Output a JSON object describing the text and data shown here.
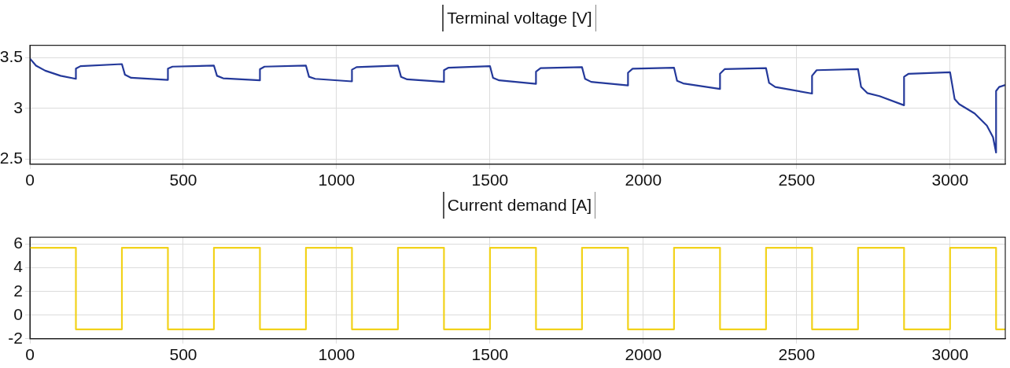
{
  "chart_data": [
    {
      "type": "line",
      "title": "Terminal voltage [V]",
      "marker": "none",
      "grid": true,
      "xlim": [
        0,
        3180
      ],
      "xticks": [
        0,
        500,
        1000,
        1500,
        2000,
        2500,
        3000
      ],
      "ylim": [
        2.45,
        3.62
      ],
      "yticks": [
        2.5,
        3,
        3.5
      ],
      "x": [
        0,
        20,
        50,
        100,
        150,
        150,
        165,
        300,
        310,
        330,
        450,
        450,
        465,
        600,
        610,
        630,
        750,
        750,
        765,
        900,
        910,
        930,
        1050,
        1050,
        1065,
        1200,
        1210,
        1230,
        1350,
        1350,
        1365,
        1500,
        1510,
        1530,
        1650,
        1650,
        1665,
        1800,
        1810,
        1830,
        1950,
        1950,
        1965,
        2100,
        2110,
        2130,
        2250,
        2250,
        2265,
        2400,
        2410,
        2430,
        2550,
        2550,
        2565,
        2700,
        2710,
        2730,
        2770,
        2850,
        2850,
        2865,
        3000,
        3015,
        3030,
        3080,
        3120,
        3140,
        3150,
        3150,
        3160,
        3180
      ],
      "series": [
        {
          "color": "#24399a",
          "values": [
            3.49,
            3.42,
            3.37,
            3.32,
            3.29,
            3.39,
            3.415,
            3.435,
            3.33,
            3.3,
            3.28,
            3.39,
            3.41,
            3.42,
            3.32,
            3.295,
            3.275,
            3.385,
            3.41,
            3.42,
            3.31,
            3.29,
            3.265,
            3.38,
            3.405,
            3.42,
            3.31,
            3.285,
            3.26,
            3.375,
            3.4,
            3.415,
            3.3,
            3.275,
            3.24,
            3.36,
            3.395,
            3.405,
            3.29,
            3.26,
            3.225,
            3.35,
            3.39,
            3.4,
            3.27,
            3.245,
            3.19,
            3.34,
            3.385,
            3.395,
            3.25,
            3.21,
            3.145,
            3.32,
            3.375,
            3.385,
            3.21,
            3.15,
            3.12,
            3.03,
            3.31,
            3.34,
            3.355,
            3.09,
            3.04,
            2.95,
            2.83,
            2.715,
            2.565,
            3.17,
            3.21,
            3.23
          ]
        }
      ]
    },
    {
      "type": "step",
      "title": "Current demand [A]",
      "marker": "none",
      "grid": true,
      "xlim": [
        0,
        3180
      ],
      "xticks": [
        0,
        500,
        1000,
        1500,
        2000,
        2500,
        3000
      ],
      "ylim": [
        -2,
        6.6
      ],
      "yticks": [
        -2,
        0,
        2,
        4,
        6
      ],
      "x": [
        0,
        150,
        300,
        450,
        600,
        750,
        900,
        1050,
        1200,
        1350,
        1500,
        1650,
        1800,
        1950,
        2100,
        2250,
        2400,
        2550,
        2700,
        2850,
        3000,
        3150,
        3180
      ],
      "series": [
        {
          "color": "#f2d21a",
          "values": [
            5.7,
            -1.2,
            5.7,
            -1.2,
            5.7,
            -1.2,
            5.7,
            -1.2,
            5.7,
            -1.2,
            5.7,
            -1.2,
            5.7,
            -1.2,
            5.7,
            -1.2,
            5.7,
            -1.2,
            5.7,
            -1.2,
            5.7,
            -1.2,
            -1.2
          ]
        }
      ]
    }
  ]
}
